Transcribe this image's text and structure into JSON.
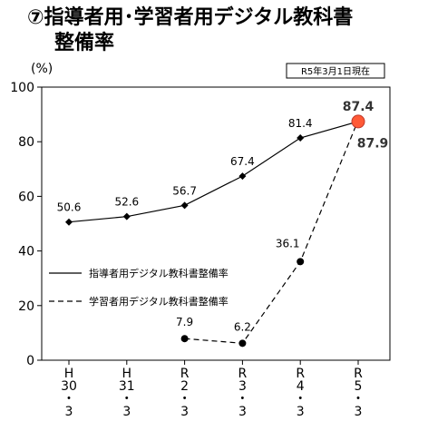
{
  "title": {
    "line1": "⑦指導者用･学習者用デジタル教科書",
    "line2": "整備率"
  },
  "date_badge": "R5年3月1日現在",
  "chart_data": {
    "type": "line",
    "title": "⑦指導者用･学習者用デジタル教科書整備率",
    "ylabel": "(%)",
    "ylim": [
      0,
      100
    ],
    "yticks": [
      0,
      20,
      40,
      60,
      80,
      100
    ],
    "categories": [
      [
        "H",
        "30",
        "・",
        "3"
      ],
      [
        "H",
        "31",
        "・",
        "3"
      ],
      [
        "R",
        "2",
        "・",
        "3"
      ],
      [
        "R",
        "3",
        "・",
        "3"
      ],
      [
        "R",
        "4",
        "・",
        "3"
      ],
      [
        "R",
        "5",
        "・",
        "3"
      ]
    ],
    "grid": false,
    "legend_position": "lower-left",
    "series": [
      {
        "name": "指導者用デジタル教科書整備率",
        "style": "solid",
        "marker": "diamond",
        "values": [
          50.6,
          52.6,
          56.7,
          67.4,
          81.4,
          87.4
        ],
        "labels": [
          "50.6",
          "52.6",
          "56.7",
          "67.4",
          "81.4",
          "87.4"
        ]
      },
      {
        "name": "学習者用デジタル教科書整備率",
        "style": "dashed",
        "marker": "circle",
        "values": [
          null,
          null,
          7.9,
          6.2,
          36.1,
          87.9
        ],
        "labels": [
          "",
          "",
          "7.9",
          "6.2",
          "36.1",
          "87.9"
        ]
      }
    ],
    "highlight": {
      "index": 5,
      "color": "#ff5a36"
    }
  }
}
